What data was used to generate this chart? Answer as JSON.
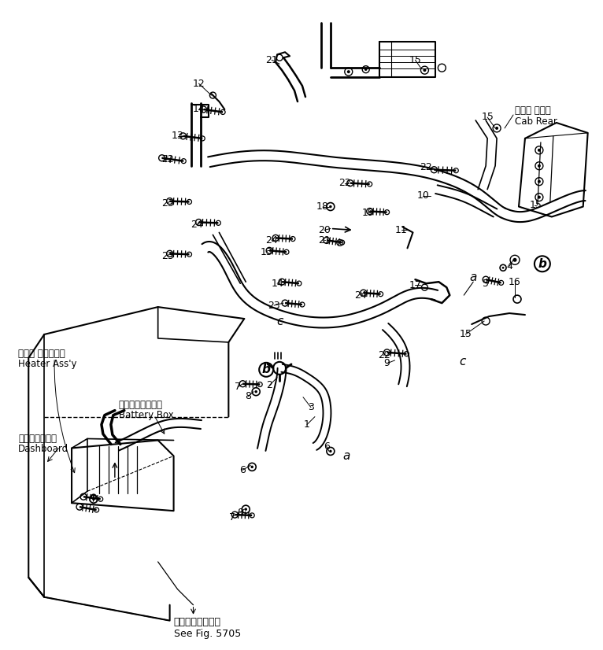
{
  "bg_color": "#ffffff",
  "fig_width": 7.66,
  "fig_height": 8.26,
  "dpi": 100,
  "cab_rear_jp": "キャブ リヤー",
  "cab_rear_en": "Cab Rear",
  "heater_jp": "ヒータ アセンブリ",
  "heater_en": "Heater Ass'y",
  "battery_jp": "バッテリボックス",
  "battery_en": "Battery Box",
  "dashboard_jp": "ダッシュボード",
  "dashboard_en": "Dashboard",
  "see_fig_jp": "第５７０５図参照",
  "see_fig_en": "See Fig. 5705",
  "line_color": "#000000"
}
